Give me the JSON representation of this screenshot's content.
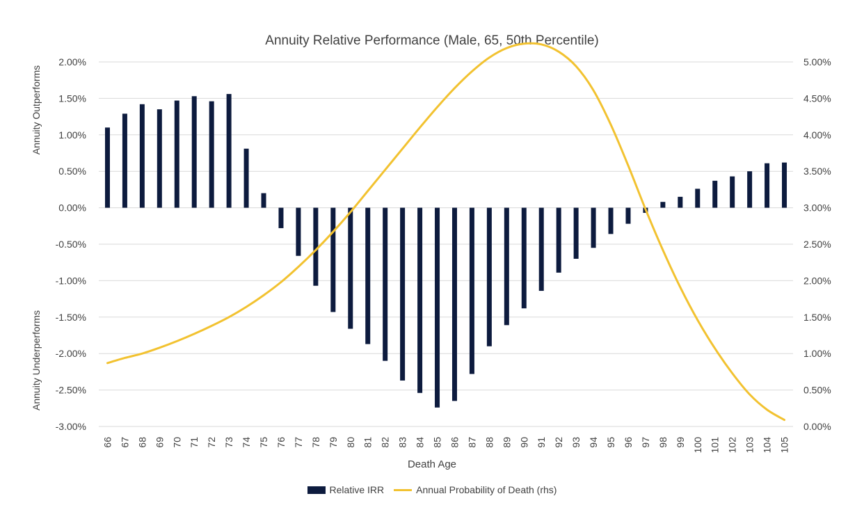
{
  "chart_data": {
    "type": "bar",
    "title": "Annuity Relative Performance (Male, 65, 50th Percentile)",
    "xlabel": "Death Age",
    "ylabel_top": "Annuity Outperforms",
    "ylabel_bottom": "Annuity Underperforms",
    "ylim": [
      -0.03,
      0.02
    ],
    "y2lim": [
      0.0,
      0.05
    ],
    "yticks": [
      "2.00%",
      "1.50%",
      "1.00%",
      "0.50%",
      "0.00%",
      "-0.50%",
      "-1.00%",
      "-1.50%",
      "-2.00%",
      "-2.50%",
      "-3.00%"
    ],
    "y2ticks": [
      "5.00%",
      "4.50%",
      "4.00%",
      "3.50%",
      "3.00%",
      "2.50%",
      "2.00%",
      "1.50%",
      "1.00%",
      "0.50%",
      "0.00%"
    ],
    "grid": true,
    "legend_position": "bottom",
    "categories": [
      "66",
      "67",
      "68",
      "69",
      "70",
      "71",
      "72",
      "73",
      "74",
      "75",
      "76",
      "77",
      "78",
      "79",
      "80",
      "81",
      "82",
      "83",
      "84",
      "85",
      "86",
      "87",
      "88",
      "89",
      "90",
      "91",
      "92",
      "93",
      "94",
      "95",
      "96",
      "97",
      "98",
      "99",
      "100",
      "101",
      "102",
      "103",
      "104",
      "105"
    ],
    "series": [
      {
        "name": "Relative IRR",
        "type": "bar",
        "axis": "left",
        "color": "#0d1b3e",
        "values": [
          0.011,
          0.0129,
          0.0142,
          0.0135,
          0.0147,
          0.0153,
          0.0146,
          0.0156,
          0.0081,
          0.002,
          -0.0028,
          -0.0066,
          -0.0107,
          -0.0143,
          -0.0166,
          -0.0187,
          -0.021,
          -0.0237,
          -0.0254,
          -0.0274,
          -0.0265,
          -0.0228,
          -0.019,
          -0.0161,
          -0.0138,
          -0.0114,
          -0.0089,
          -0.007,
          -0.0055,
          -0.0036,
          -0.0022,
          -0.0007,
          0.0008,
          0.0015,
          0.0026,
          0.0037,
          0.0043,
          0.005,
          0.0061,
          0.0062
        ]
      },
      {
        "name": "Annual Probability of Death (rhs)",
        "type": "line",
        "axis": "right",
        "color": "#f2c230",
        "values": [
          0.0087,
          0.0094,
          0.01,
          0.0108,
          0.0117,
          0.0127,
          0.0138,
          0.015,
          0.0164,
          0.018,
          0.0198,
          0.0219,
          0.0242,
          0.0267,
          0.0294,
          0.0323,
          0.0352,
          0.0381,
          0.041,
          0.0438,
          0.0464,
          0.0487,
          0.0506,
          0.0519,
          0.0525,
          0.0524,
          0.0514,
          0.0494,
          0.0461,
          0.0414,
          0.0358,
          0.0298,
          0.0242,
          0.0191,
          0.0146,
          0.0107,
          0.0073,
          0.0044,
          0.0023,
          0.0009
        ]
      }
    ]
  }
}
